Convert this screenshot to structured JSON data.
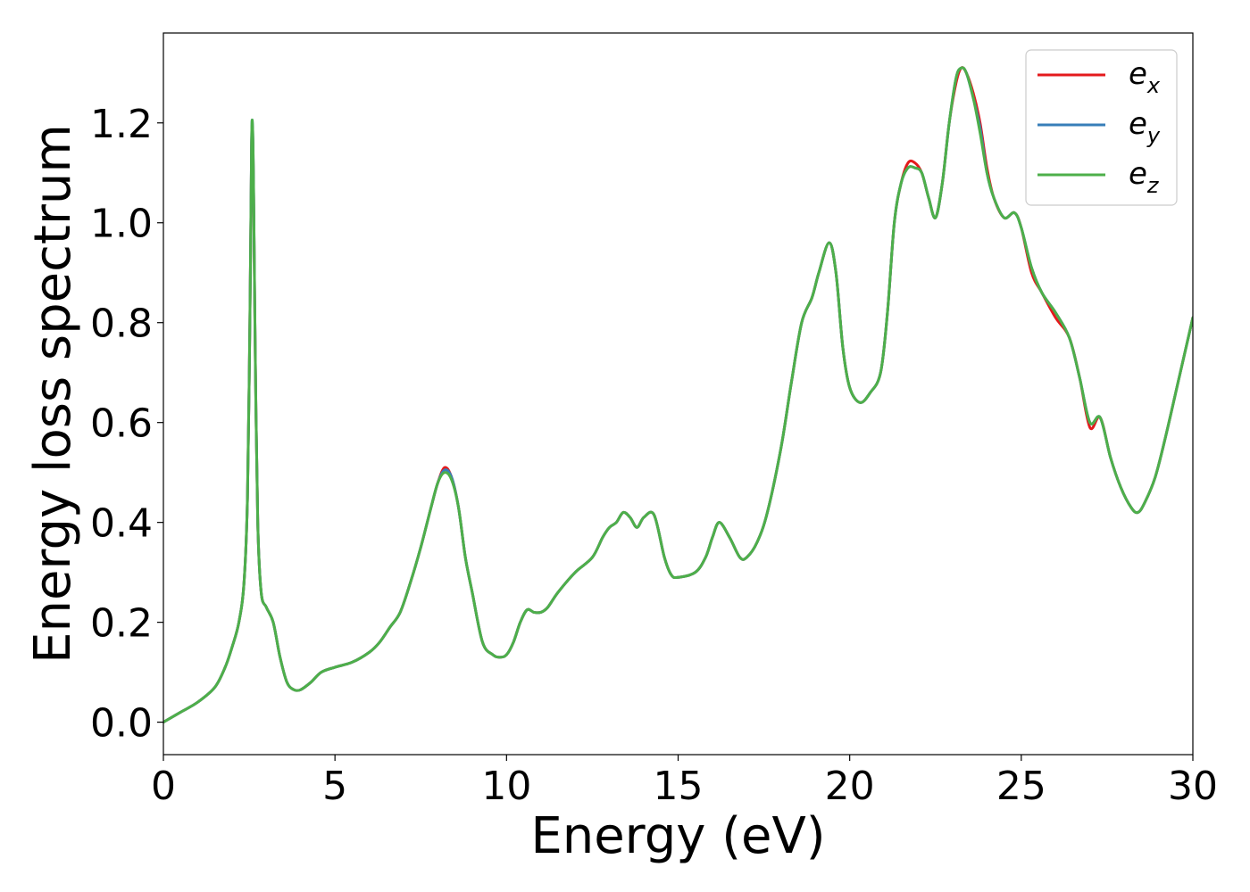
{
  "chart_data": {
    "type": "line",
    "xlabel": "Energy (eV)",
    "ylabel": "Energy loss spectrum",
    "xlim": [
      0,
      30
    ],
    "ylim": [
      -0.065,
      1.38
    ],
    "xticks": [
      0,
      5,
      10,
      15,
      20,
      25,
      30
    ],
    "xtick_labels": [
      "0",
      "5",
      "10",
      "15",
      "20",
      "25",
      "30"
    ],
    "yticks": [
      0.0,
      0.2,
      0.4,
      0.6,
      0.8,
      1.0,
      1.2
    ],
    "ytick_labels": [
      "0.0",
      "0.2",
      "0.4",
      "0.6",
      "0.8",
      "1.0",
      "1.2"
    ],
    "grid": false,
    "legend_position": "top-right",
    "series": [
      {
        "name": "e_x",
        "legend_main": "e",
        "legend_sub": "x",
        "color": "#e41a1c",
        "x": [
          0,
          0.5,
          1,
          1.5,
          1.8,
          2.0,
          2.2,
          2.35,
          2.45,
          2.52,
          2.57,
          2.6,
          2.63,
          2.68,
          2.75,
          2.85,
          3.0,
          3.2,
          3.4,
          3.6,
          3.8,
          4.0,
          4.3,
          4.6,
          5.0,
          5.5,
          6.0,
          6.3,
          6.6,
          6.9,
          7.2,
          7.5,
          7.8,
          8.0,
          8.2,
          8.4,
          8.6,
          8.8,
          9.0,
          9.3,
          9.6,
          9.8,
          10.0,
          10.2,
          10.4,
          10.6,
          10.8,
          11.0,
          11.2,
          11.5,
          12.0,
          12.5,
          12.8,
          13.0,
          13.2,
          13.4,
          13.6,
          13.8,
          14.0,
          14.3,
          14.6,
          14.8,
          15.0,
          15.5,
          15.8,
          16.0,
          16.2,
          16.5,
          16.8,
          17.0,
          17.3,
          17.6,
          18.0,
          18.3,
          18.6,
          18.9,
          19.1,
          19.4,
          19.6,
          19.8,
          20.0,
          20.3,
          20.6,
          20.9,
          21.1,
          21.3,
          21.5,
          21.7,
          21.9,
          22.1,
          22.3,
          22.5,
          22.7,
          22.9,
          23.1,
          23.25,
          23.4,
          23.6,
          23.8,
          24.0,
          24.2,
          24.5,
          24.8,
          25.0,
          25.3,
          25.6,
          26.0,
          26.4,
          26.7,
          27.0,
          27.3,
          27.6,
          27.9,
          28.2,
          28.4,
          28.6,
          28.9,
          29.2,
          29.6,
          30.0
        ],
        "values": [
          0.0,
          0.02,
          0.04,
          0.07,
          0.11,
          0.15,
          0.2,
          0.28,
          0.45,
          0.8,
          1.15,
          1.18,
          1.05,
          0.72,
          0.4,
          0.26,
          0.23,
          0.2,
          0.13,
          0.08,
          0.065,
          0.065,
          0.08,
          0.1,
          0.11,
          0.12,
          0.14,
          0.16,
          0.19,
          0.22,
          0.28,
          0.35,
          0.43,
          0.48,
          0.51,
          0.49,
          0.43,
          0.33,
          0.26,
          0.16,
          0.135,
          0.13,
          0.135,
          0.16,
          0.2,
          0.225,
          0.22,
          0.22,
          0.23,
          0.26,
          0.3,
          0.33,
          0.37,
          0.39,
          0.4,
          0.42,
          0.41,
          0.39,
          0.41,
          0.415,
          0.33,
          0.295,
          0.29,
          0.3,
          0.33,
          0.37,
          0.4,
          0.37,
          0.33,
          0.33,
          0.36,
          0.42,
          0.55,
          0.68,
          0.8,
          0.85,
          0.9,
          0.96,
          0.9,
          0.75,
          0.67,
          0.64,
          0.66,
          0.7,
          0.82,
          1.0,
          1.08,
          1.12,
          1.12,
          1.1,
          1.05,
          1.01,
          1.08,
          1.2,
          1.28,
          1.31,
          1.3,
          1.26,
          1.2,
          1.11,
          1.05,
          1.01,
          1.02,
          0.99,
          0.9,
          0.86,
          0.81,
          0.77,
          0.69,
          0.59,
          0.61,
          0.53,
          0.47,
          0.43,
          0.42,
          0.44,
          0.49,
          0.57,
          0.69,
          0.81
        ]
      },
      {
        "name": "e_y",
        "legend_main": "e",
        "legend_sub": "y",
        "color": "#377eb8",
        "x": [
          0,
          0.5,
          1,
          1.5,
          1.8,
          2.0,
          2.2,
          2.35,
          2.45,
          2.52,
          2.57,
          2.6,
          2.63,
          2.68,
          2.75,
          2.85,
          3.0,
          3.2,
          3.4,
          3.6,
          3.8,
          4.0,
          4.3,
          4.6,
          5.0,
          5.5,
          6.0,
          6.3,
          6.6,
          6.9,
          7.2,
          7.5,
          7.8,
          8.0,
          8.2,
          8.4,
          8.6,
          8.8,
          9.0,
          9.3,
          9.6,
          9.8,
          10.0,
          10.2,
          10.4,
          10.6,
          10.8,
          11.0,
          11.2,
          11.5,
          12.0,
          12.5,
          12.8,
          13.0,
          13.2,
          13.4,
          13.6,
          13.8,
          14.0,
          14.3,
          14.6,
          14.8,
          15.0,
          15.5,
          15.8,
          16.0,
          16.2,
          16.5,
          16.8,
          17.0,
          17.3,
          17.6,
          18.0,
          18.3,
          18.6,
          18.9,
          19.1,
          19.4,
          19.6,
          19.8,
          20.0,
          20.3,
          20.6,
          20.9,
          21.1,
          21.3,
          21.5,
          21.7,
          21.9,
          22.1,
          22.3,
          22.5,
          22.7,
          22.9,
          23.1,
          23.25,
          23.4,
          23.6,
          23.8,
          24.0,
          24.2,
          24.5,
          24.8,
          25.0,
          25.3,
          25.6,
          26.0,
          26.4,
          26.7,
          27.0,
          27.3,
          27.6,
          27.9,
          28.2,
          28.4,
          28.6,
          28.9,
          29.2,
          29.6,
          30.0
        ],
        "values": [
          0.0,
          0.02,
          0.04,
          0.07,
          0.11,
          0.15,
          0.2,
          0.28,
          0.45,
          0.8,
          1.16,
          1.19,
          1.06,
          0.72,
          0.4,
          0.26,
          0.23,
          0.2,
          0.13,
          0.08,
          0.065,
          0.065,
          0.08,
          0.1,
          0.11,
          0.12,
          0.14,
          0.16,
          0.19,
          0.22,
          0.28,
          0.35,
          0.43,
          0.48,
          0.505,
          0.49,
          0.43,
          0.33,
          0.26,
          0.16,
          0.135,
          0.13,
          0.135,
          0.16,
          0.2,
          0.225,
          0.22,
          0.22,
          0.23,
          0.26,
          0.3,
          0.33,
          0.37,
          0.39,
          0.4,
          0.42,
          0.41,
          0.39,
          0.41,
          0.415,
          0.33,
          0.295,
          0.29,
          0.3,
          0.33,
          0.37,
          0.4,
          0.37,
          0.33,
          0.33,
          0.36,
          0.42,
          0.55,
          0.68,
          0.8,
          0.85,
          0.9,
          0.96,
          0.9,
          0.75,
          0.67,
          0.64,
          0.66,
          0.7,
          0.82,
          1.0,
          1.08,
          1.11,
          1.11,
          1.1,
          1.05,
          1.01,
          1.08,
          1.2,
          1.29,
          1.31,
          1.3,
          1.25,
          1.19,
          1.1,
          1.05,
          1.01,
          1.02,
          0.99,
          0.91,
          0.86,
          0.82,
          0.77,
          0.69,
          0.6,
          0.61,
          0.53,
          0.47,
          0.43,
          0.42,
          0.44,
          0.49,
          0.57,
          0.69,
          0.81
        ]
      },
      {
        "name": "e_z",
        "legend_main": "e",
        "legend_sub": "z",
        "color": "#4daf4a",
        "x": [
          0,
          0.5,
          1,
          1.5,
          1.8,
          2.0,
          2.2,
          2.35,
          2.45,
          2.52,
          2.57,
          2.6,
          2.63,
          2.68,
          2.75,
          2.85,
          3.0,
          3.2,
          3.4,
          3.6,
          3.8,
          4.0,
          4.3,
          4.6,
          5.0,
          5.5,
          6.0,
          6.3,
          6.6,
          6.9,
          7.2,
          7.5,
          7.8,
          8.0,
          8.2,
          8.4,
          8.6,
          8.8,
          9.0,
          9.3,
          9.6,
          9.8,
          10.0,
          10.2,
          10.4,
          10.6,
          10.8,
          11.0,
          11.2,
          11.5,
          12.0,
          12.5,
          12.8,
          13.0,
          13.2,
          13.4,
          13.6,
          13.8,
          14.0,
          14.3,
          14.6,
          14.8,
          15.0,
          15.5,
          15.8,
          16.0,
          16.2,
          16.5,
          16.8,
          17.0,
          17.3,
          17.6,
          18.0,
          18.3,
          18.6,
          18.9,
          19.1,
          19.4,
          19.6,
          19.8,
          20.0,
          20.3,
          20.6,
          20.9,
          21.1,
          21.3,
          21.5,
          21.7,
          21.9,
          22.1,
          22.3,
          22.5,
          22.7,
          22.9,
          23.1,
          23.25,
          23.4,
          23.6,
          23.8,
          24.0,
          24.2,
          24.5,
          24.8,
          25.0,
          25.3,
          25.6,
          26.0,
          26.4,
          26.7,
          27.0,
          27.3,
          27.6,
          27.9,
          28.2,
          28.4,
          28.6,
          28.9,
          29.2,
          29.6,
          30.0
        ],
        "values": [
          0.0,
          0.02,
          0.04,
          0.07,
          0.11,
          0.15,
          0.2,
          0.28,
          0.45,
          0.8,
          1.16,
          1.19,
          1.06,
          0.72,
          0.4,
          0.26,
          0.23,
          0.2,
          0.13,
          0.08,
          0.065,
          0.065,
          0.08,
          0.1,
          0.11,
          0.12,
          0.14,
          0.16,
          0.19,
          0.22,
          0.28,
          0.35,
          0.43,
          0.48,
          0.5,
          0.485,
          0.43,
          0.33,
          0.26,
          0.16,
          0.135,
          0.13,
          0.135,
          0.16,
          0.2,
          0.225,
          0.22,
          0.22,
          0.23,
          0.26,
          0.3,
          0.33,
          0.37,
          0.39,
          0.4,
          0.42,
          0.41,
          0.39,
          0.41,
          0.415,
          0.33,
          0.295,
          0.29,
          0.3,
          0.33,
          0.37,
          0.4,
          0.37,
          0.33,
          0.33,
          0.36,
          0.42,
          0.55,
          0.68,
          0.8,
          0.85,
          0.9,
          0.96,
          0.9,
          0.75,
          0.67,
          0.64,
          0.66,
          0.7,
          0.82,
          1.0,
          1.08,
          1.11,
          1.11,
          1.1,
          1.05,
          1.01,
          1.08,
          1.2,
          1.29,
          1.31,
          1.3,
          1.25,
          1.18,
          1.1,
          1.05,
          1.01,
          1.02,
          0.99,
          0.91,
          0.86,
          0.82,
          0.77,
          0.69,
          0.6,
          0.61,
          0.53,
          0.47,
          0.43,
          0.42,
          0.44,
          0.49,
          0.57,
          0.69,
          0.81
        ]
      }
    ]
  }
}
